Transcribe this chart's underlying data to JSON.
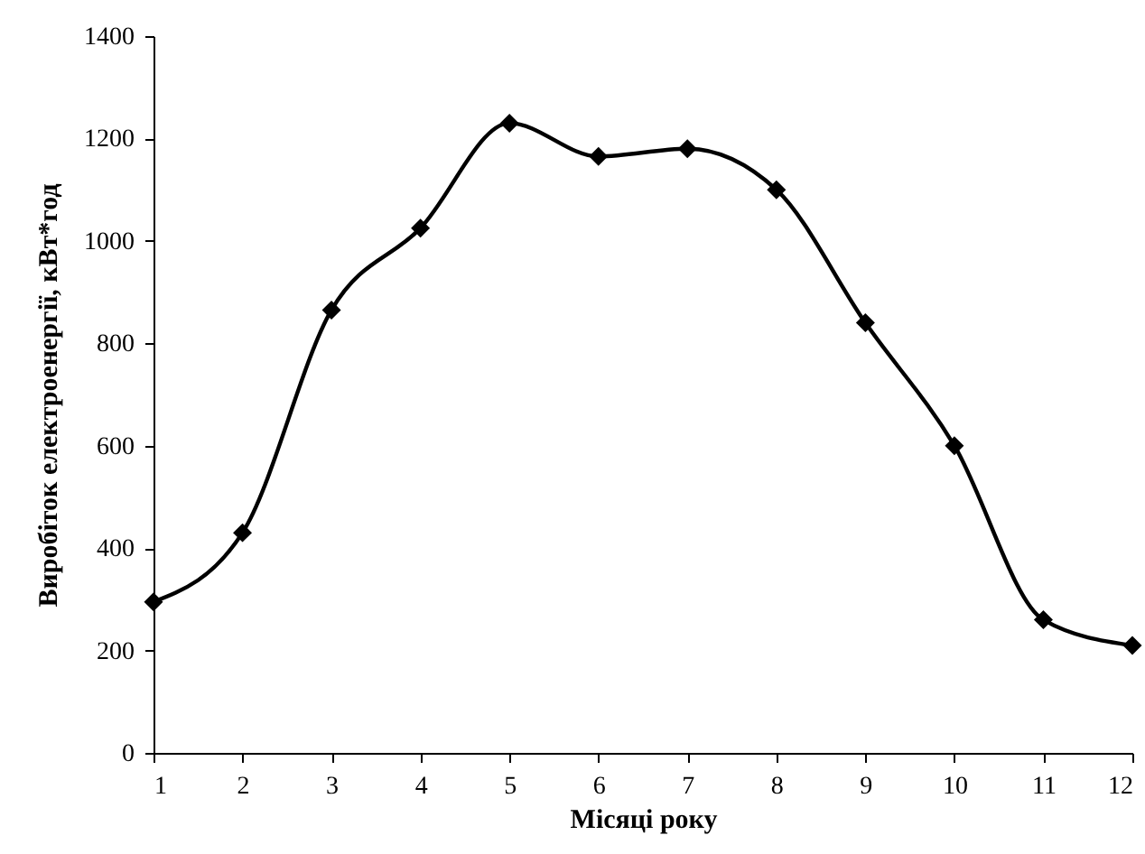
{
  "chart_data": {
    "type": "line",
    "xlabel": "Місяці року",
    "ylabel": "Виробіток електроенергії, кВт*год",
    "x": [
      1,
      2,
      3,
      4,
      5,
      6,
      7,
      8,
      9,
      10,
      11,
      12
    ],
    "series": [
      {
        "color": "#000000",
        "values": [
          295,
          430,
          865,
          1025,
          1230,
          1165,
          1180,
          1100,
          840,
          600,
          260,
          210
        ]
      }
    ],
    "xlim": [
      1,
      12
    ],
    "xticks": [
      1,
      2,
      3,
      4,
      5,
      6,
      7,
      8,
      9,
      10,
      11,
      12
    ],
    "ylim": [
      0,
      1400
    ],
    "yticks": [
      0,
      200,
      400,
      600,
      800,
      1000,
      1200,
      1400
    ],
    "marker": "diamond",
    "line_style": "solid",
    "grid": false
  }
}
